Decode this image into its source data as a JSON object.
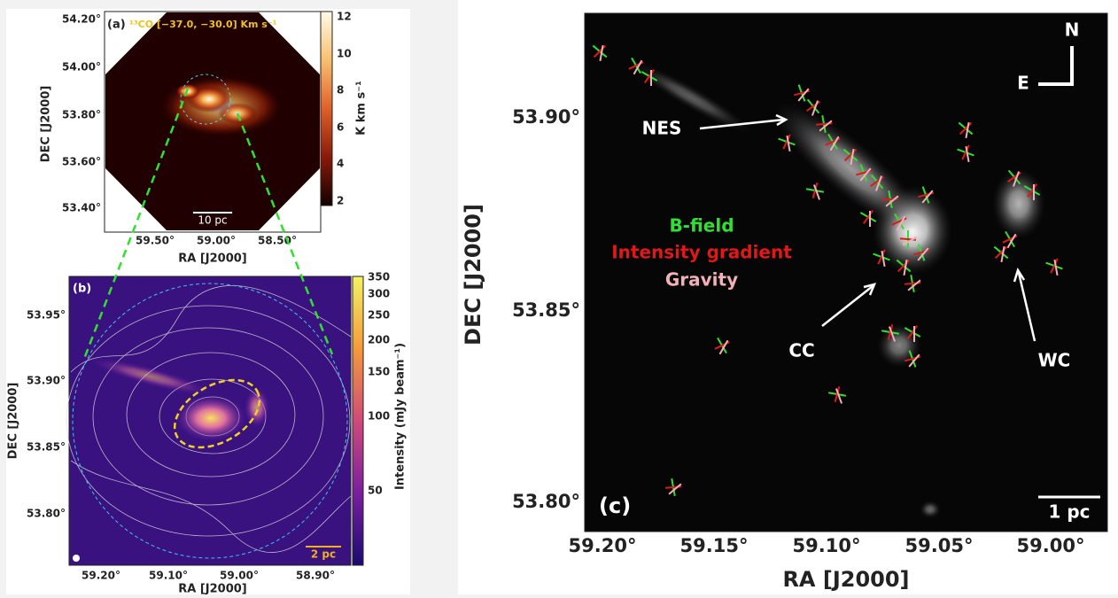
{
  "panel_a": {
    "label": "(a)",
    "title": "¹³CO [−37.0, −30.0] Km s⁻¹",
    "xlabel": "RA [J2000]",
    "ylabel": "DEC [J2000]",
    "xticks": [
      "59.50°",
      "59.00°",
      "58.50°"
    ],
    "yticks": [
      "54.20°",
      "54.00°",
      "53.80°",
      "53.60°",
      "53.40°"
    ],
    "colorbar_label": "K km s⁻¹",
    "colorbar_ticks": [
      "12",
      "10",
      "8",
      "6",
      "4",
      "2"
    ],
    "scalebar": "10 pc"
  },
  "panel_b": {
    "label": "(b)",
    "xlabel": "RA [J2000]",
    "ylabel": "DEC [J2000]",
    "xticks": [
      "59.20°",
      "59.10°",
      "59.00°",
      "58.90°"
    ],
    "yticks": [
      "53.95°",
      "53.90°",
      "53.85°",
      "53.80°"
    ],
    "colorbar_label": "Intensity (mJy beam⁻¹)",
    "colorbar_ticks": [
      "350",
      "300",
      "250",
      "200",
      "150",
      "100",
      "50"
    ],
    "scalebar": "2 pc"
  },
  "panel_c": {
    "label": "(c)",
    "xlabel": "RA [J2000]",
    "ylabel": "DEC [J2000]",
    "xticks": [
      "59.20°",
      "59.15°",
      "59.10°",
      "59.05°",
      "59.00°"
    ],
    "yticks": [
      "53.90°",
      "53.85°",
      "53.80°"
    ],
    "scalebar": "1 pc",
    "compass_north": "N",
    "compass_east": "E",
    "annotations": [
      "NES",
      "CC",
      "WC"
    ],
    "legend": [
      "B-field",
      "Intensity gradient",
      "Gravity"
    ]
  }
}
